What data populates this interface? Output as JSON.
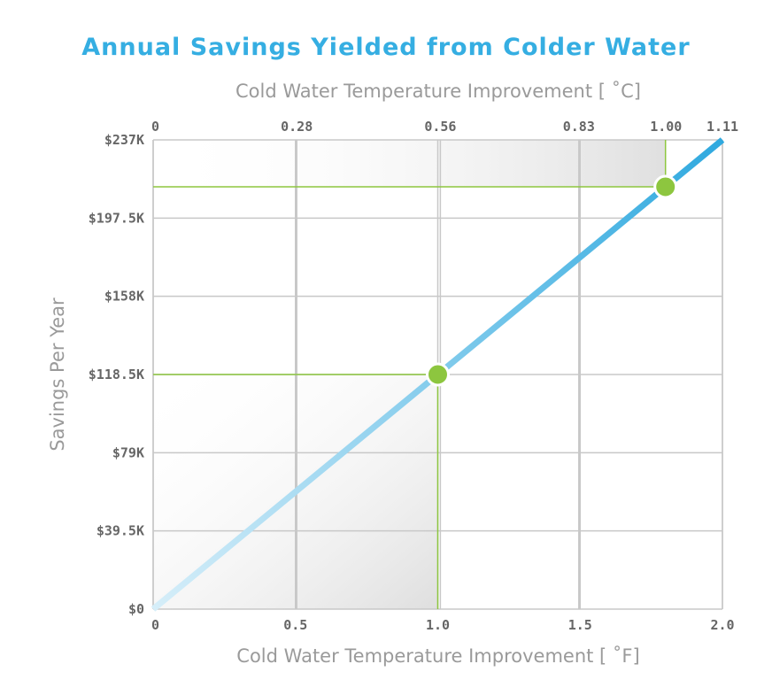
{
  "chart_data": {
    "type": "line",
    "title": "Annual Savings Yielded from Colder Water",
    "xlabel": "Cold Water Temperature Improvement [ ˚F]",
    "x2label": "Cold Water Temperature Improvement [ ˚C]",
    "ylabel": "Savings Per Year",
    "xlim": [
      0,
      2.0
    ],
    "ylim": [
      0,
      237
    ],
    "x_ticks": [
      {
        "value": 0,
        "label": "0"
      },
      {
        "value": 0.5,
        "label": "0.5"
      },
      {
        "value": 1.0,
        "label": "1.0",
        "highlight": true
      },
      {
        "value": 1.5,
        "label": "1.5"
      },
      {
        "value": 2.0,
        "label": "2.0"
      }
    ],
    "x2_ticks": [
      {
        "value": 0,
        "label": "0"
      },
      {
        "value": 0.28,
        "label": "0.28"
      },
      {
        "value": 0.56,
        "label": "0.56"
      },
      {
        "value": 0.83,
        "label": "0.83"
      },
      {
        "value": 1.0,
        "label": "1.00",
        "highlight": true
      },
      {
        "value": 1.11,
        "label": "1.11"
      }
    ],
    "y_ticks": [
      {
        "value": 0,
        "label": "$0"
      },
      {
        "value": 39.5,
        "label": "$39.5K"
      },
      {
        "value": 79,
        "label": "$79K"
      },
      {
        "value": 118.5,
        "label": "$118.5K"
      },
      {
        "value": 158,
        "label": "$158K"
      },
      {
        "value": 197.5,
        "label": "$197.5K"
      },
      {
        "value": 237,
        "label": "$237K"
      }
    ],
    "series": [
      {
        "x": [
          0,
          2.0
        ],
        "y": [
          0,
          237
        ]
      }
    ],
    "highlight_points": [
      {
        "x": 1.0,
        "y": 118.5
      },
      {
        "x": 1.8,
        "y": 213.3
      }
    ],
    "grid": true
  },
  "colors": {
    "title": "#35aee2",
    "line_start": "#d6eef9",
    "line_end": "#2fa9df",
    "highlight": "#8dc63f",
    "grid": "#c8c8c8",
    "tick": "#666666",
    "axis_label": "#9a9a9a"
  }
}
